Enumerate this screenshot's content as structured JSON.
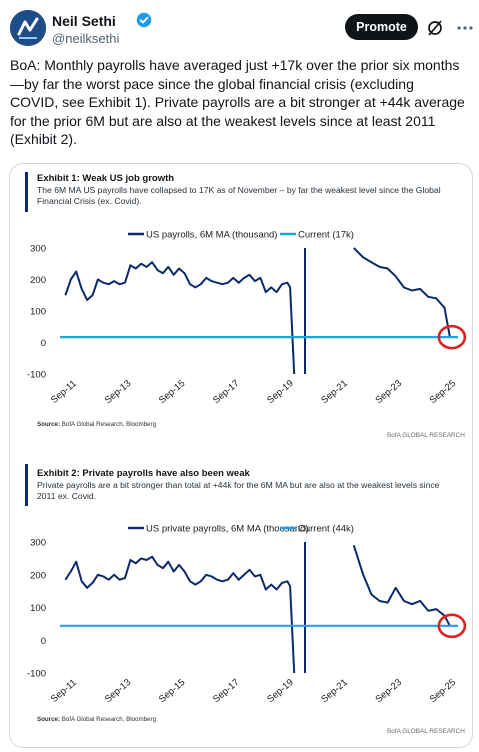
{
  "post": {
    "author_name": "Neil Sethi",
    "author_handle": "@neilksethi",
    "promote_label": "Promote",
    "text": "BoA: Monthly payrolls have averaged just +17k over the prior six months\n—by far the worst pace since the global financial crisis (excluding\nCOVID, see Exhibit 1). Private payrolls are a bit stronger at +44k average\nfor the prior 6M but are also at the weakest levels since at least 2011\n(Exhibit 2)."
  },
  "icons": {
    "avatar": "avatar-logo",
    "verified": "verified-badge-icon",
    "grok": "grok-icon",
    "more": "more-icon"
  },
  "colors": {
    "primary_series": "#0a2a6b",
    "current_line": "#1fa2e0",
    "highlight_circle": "#e02020",
    "verified": "#1d9bf0"
  },
  "chart_data": [
    {
      "type": "line",
      "title": "Exhibit 1: Weak US job growth",
      "subtitle": "The 6M MA US payrolls have collapsed to 17K as of November – by far the weakest level since the Global Financial Crisis (ex. Covid).",
      "source_label": "Source:",
      "source_text": " BofA Global Research, Bloomberg",
      "brand": "BofA GLOBAL RESEARCH",
      "ylim": [
        -100,
        300
      ],
      "yticks": [
        -100,
        0,
        100,
        200,
        300
      ],
      "xlim": [
        2011.5,
        2026.2
      ],
      "xtick_labels": [
        "Sep-11",
        "Sep-13",
        "Sep-15",
        "Sep-17",
        "Sep-19",
        "Sep-21",
        "Sep-23",
        "Sep-25"
      ],
      "grid": false,
      "legend_position": "top",
      "series": [
        {
          "name": "US payrolls, 6M MA (thousand)",
          "x": [
            2011.7,
            2011.9,
            2012.1,
            2012.3,
            2012.5,
            2012.7,
            2012.9,
            2013.1,
            2013.3,
            2013.5,
            2013.7,
            2013.9,
            2014.1,
            2014.3,
            2014.5,
            2014.7,
            2014.9,
            2015.1,
            2015.3,
            2015.5,
            2015.7,
            2015.9,
            2016.1,
            2016.3,
            2016.5,
            2016.7,
            2016.9,
            2017.1,
            2017.3,
            2017.5,
            2017.7,
            2017.9,
            2018.1,
            2018.3,
            2018.5,
            2018.7,
            2018.9,
            2019.1,
            2019.3,
            2019.5,
            2019.7,
            2019.9,
            2020.0,
            2020.15
          ],
          "values": [
            150,
            200,
            225,
            170,
            135,
            150,
            200,
            190,
            185,
            195,
            185,
            190,
            245,
            235,
            250,
            240,
            255,
            230,
            220,
            240,
            215,
            235,
            220,
            185,
            175,
            185,
            205,
            195,
            190,
            185,
            190,
            205,
            190,
            205,
            215,
            195,
            205,
            160,
            175,
            160,
            185,
            190,
            175,
            -100
          ]
        },
        {
          "name": "",
          "x": [
            2020.55,
            2020.55
          ],
          "values": [
            -100,
            300
          ]
        },
        {
          "name": "",
          "x": [
            2022.35,
            2022.7,
            2023.0,
            2023.3,
            2023.6,
            2023.9,
            2024.2,
            2024.5,
            2024.8,
            2025.1,
            2025.4,
            2025.7,
            2025.9
          ],
          "values": [
            300,
            270,
            255,
            240,
            235,
            210,
            175,
            165,
            170,
            145,
            140,
            110,
            17
          ]
        },
        {
          "name": "Current (17k)",
          "x": [
            2011.5,
            2026.2
          ],
          "values": [
            17,
            17
          ]
        }
      ],
      "annotations": [
        {
          "type": "circle",
          "x": 2025.9,
          "y": 17
        }
      ]
    },
    {
      "type": "line",
      "title": "Exhibit 2: Private payrolls have also been weak",
      "subtitle": "Private payrolls are a bit stronger than total at +44k for the 6M MA but are also at the weakest levels since 2011 ex. Covid.",
      "source_label": "Source:",
      "source_text": " BofA Global Research, Bloomberg",
      "brand": "BofA GLOBAL RESEARCH",
      "ylim": [
        -100,
        300
      ],
      "yticks": [
        -100,
        0,
        100,
        200,
        300
      ],
      "xlim": [
        2011.5,
        2026.2
      ],
      "xtick_labels": [
        "Sep-11",
        "Sep-13",
        "Sep-15",
        "Sep-17",
        "Sep-19",
        "Sep-21",
        "Sep-23",
        "Sep-25"
      ],
      "grid": false,
      "legend_position": "top",
      "series": [
        {
          "name": "US private payrolls, 6M MA (thousand)",
          "x": [
            2011.7,
            2011.9,
            2012.1,
            2012.3,
            2012.5,
            2012.7,
            2012.9,
            2013.1,
            2013.3,
            2013.5,
            2013.7,
            2013.9,
            2014.1,
            2014.3,
            2014.5,
            2014.7,
            2014.9,
            2015.1,
            2015.3,
            2015.5,
            2015.7,
            2015.9,
            2016.1,
            2016.3,
            2016.5,
            2016.7,
            2016.9,
            2017.1,
            2017.3,
            2017.5,
            2017.7,
            2017.9,
            2018.1,
            2018.3,
            2018.5,
            2018.7,
            2018.9,
            2019.1,
            2019.3,
            2019.5,
            2019.7,
            2019.9,
            2020.0,
            2020.15
          ],
          "values": [
            185,
            210,
            240,
            180,
            160,
            175,
            200,
            195,
            185,
            200,
            185,
            190,
            245,
            235,
            250,
            245,
            255,
            230,
            220,
            240,
            210,
            230,
            210,
            180,
            170,
            180,
            200,
            195,
            185,
            180,
            185,
            205,
            185,
            200,
            215,
            195,
            200,
            155,
            170,
            155,
            175,
            180,
            165,
            -100
          ]
        },
        {
          "name": "",
          "x": [
            2020.55,
            2020.55
          ],
          "values": [
            -100,
            300
          ]
        },
        {
          "name": "",
          "x": [
            2022.35,
            2022.7,
            2023.0,
            2023.3,
            2023.6,
            2023.9,
            2024.2,
            2024.5,
            2024.8,
            2025.1,
            2025.4,
            2025.7,
            2025.9
          ],
          "values": [
            290,
            200,
            140,
            120,
            115,
            160,
            120,
            110,
            120,
            90,
            95,
            75,
            44
          ]
        },
        {
          "name": "Current (44k)",
          "x": [
            2011.5,
            2026.2
          ],
          "values": [
            44,
            44
          ]
        }
      ],
      "annotations": [
        {
          "type": "circle",
          "x": 2025.9,
          "y": 44
        }
      ]
    }
  ]
}
